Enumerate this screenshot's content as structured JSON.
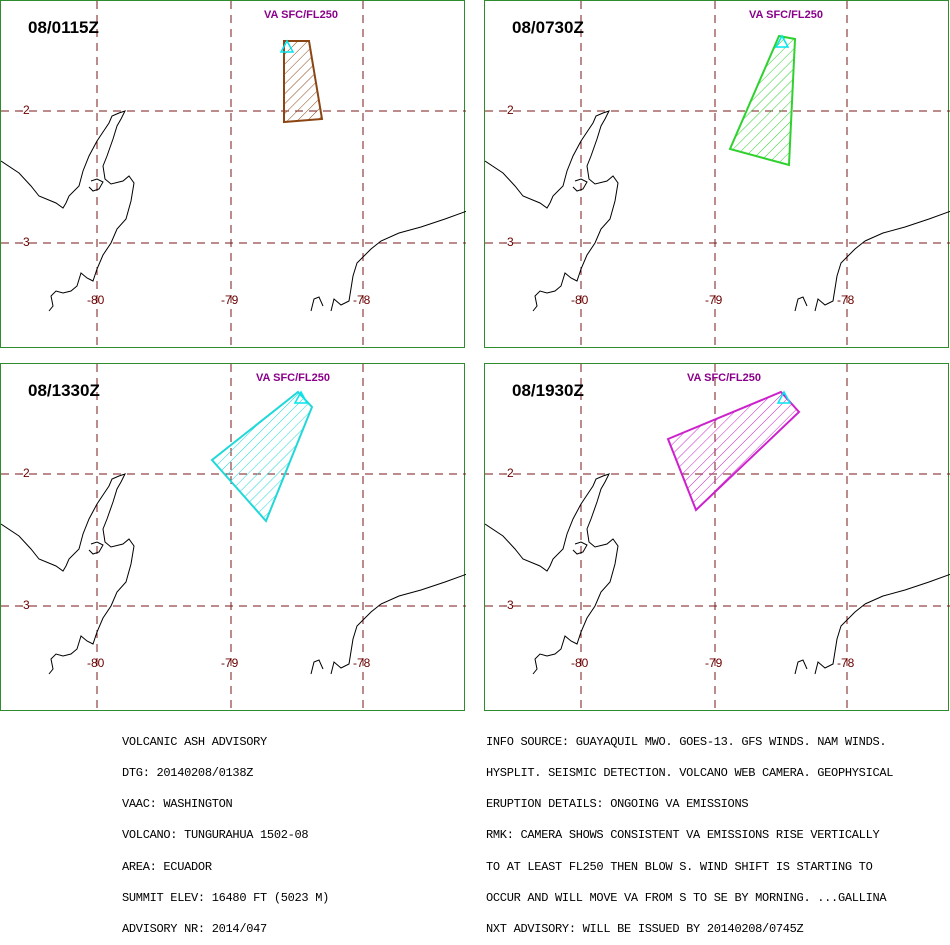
{
  "panels": [
    {
      "time": "08/0115Z",
      "va_label": "VA SFC/FL250",
      "color": "#8b4513"
    },
    {
      "time": "08/0730Z",
      "va_label": "VA SFC/FL250",
      "color": "#2ed12e"
    },
    {
      "time": "08/1330Z",
      "va_label": "VA SFC/FL250",
      "color": "#20d8d8"
    },
    {
      "time": "08/1930Z",
      "va_label": "VA SFC/FL250",
      "color": "#cc22cc"
    }
  ],
  "lat_labels": [
    "-2",
    "-3"
  ],
  "lon_labels": [
    "-80",
    "-79",
    "-78"
  ],
  "volcano_color": "#00e5ee",
  "advisory_left": [
    "VOLCANIC ASH ADVISORY",
    "DTG: 20140208/0138Z",
    "VAAC: WASHINGTON",
    "VOLCANO: TUNGURAHUA 1502-08",
    "AREA: ECUADOR",
    "SUMMIT ELEV: 16480 FT (5023 M)",
    "ADVISORY NR: 2014/047"
  ],
  "advisory_right": [
    "INFO SOURCE: GUAYAQUIL MWO. GOES-13. GFS WINDS. NAM WINDS.",
    "HYSPLIT. SEISMIC DETECTION. VOLCANO WEB CAMERA. GEOPHYSICAL",
    "ERUPTION DETAILS: ONGOING VA EMISSIONS",
    "RMK: CAMERA SHOWS CONSISTENT VA EMISSIONS RISE VERTICALLY",
    "TO AT LEAST FL250 THEN BLOW S. WIND SHIFT IS STARTING TO",
    "OCCUR AND WILL MOVE VA FROM S TO SE BY MORNING. ...GALLINA",
    "NXT ADVISORY: WILL BE ISSUED BY 20140208/0745Z"
  ]
}
